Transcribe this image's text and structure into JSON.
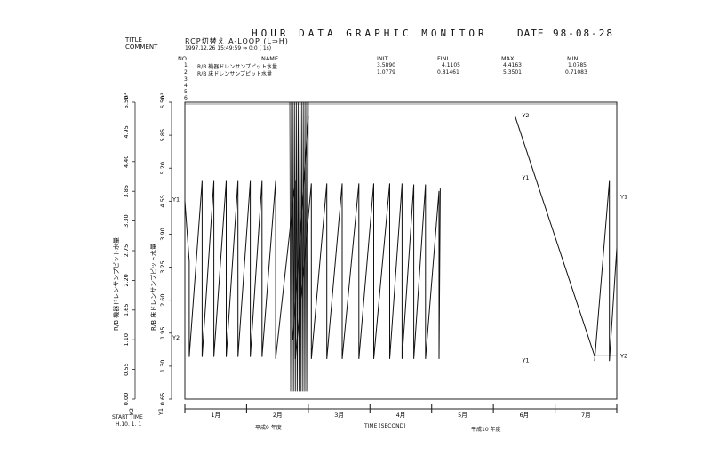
{
  "header": {
    "title": "HOUR DATA GRAPHIC MONITOR",
    "date_label": "DATE",
    "date_value": "98-08-28"
  },
  "meta": {
    "title_label": "TITLE",
    "comment_label": "COMMENT",
    "title_value": "RCP切替え A-LOOP (L⇒H)",
    "comment_value": "1997.12.26 15:49:59 ⇒ 0:0 ( 1s)"
  },
  "table": {
    "headers": [
      "NO.",
      "NAME",
      "INIT",
      "FINL.",
      "MAX.",
      "MIN."
    ],
    "rows": [
      {
        "no": "1",
        "name": "R/B 機器ドレンサンプピット水量",
        "init": "3.5890",
        "finl": "4.1105",
        "max": "4.4163",
        "min": "1.0785"
      },
      {
        "no": "2",
        "name": "R/B 床ドレンサンプピット水量",
        "init": "1.0779",
        "finl": "0.81461",
        "max": "5.3501",
        "min": "0.71083"
      },
      {
        "no": "3",
        "name": "",
        "init": "",
        "finl": "",
        "max": "",
        "min": ""
      },
      {
        "no": "4",
        "name": "",
        "init": "",
        "finl": "",
        "max": "",
        "min": ""
      },
      {
        "no": "5",
        "name": "",
        "init": "",
        "finl": "",
        "max": "",
        "min": ""
      },
      {
        "no": "6",
        "name": "",
        "init": "",
        "finl": "",
        "max": "",
        "min": ""
      }
    ]
  },
  "footer": {
    "start_time_label": "START TIME",
    "start_time_value": "H.10. 1. 1",
    "era_left": "平成9 年度",
    "xlabel": "TIME (SECOND)",
    "era_right": "平成10 年度"
  },
  "chart_data": {
    "type": "line",
    "xlabel": "TIME (SECOND)",
    "categories": [
      "1月",
      "2月",
      "3月",
      "4月",
      "5月",
      "6月",
      "7月"
    ],
    "xlim": [
      0,
      7
    ],
    "axes": [
      {
        "id": "Y2",
        "unit": "m³",
        "ylabel": "R/B 機器ドレンサンプピット水量",
        "ylim": [
          0,
          5.5
        ],
        "ticks": [
          "0.00",
          "0.55",
          "1.10",
          "1.65",
          "2.20",
          "2.75",
          "3.30",
          "3.85",
          "4.40",
          "4.95",
          "5.50"
        ]
      },
      {
        "id": "Y1",
        "unit": "m³",
        "ylabel": "R/B 床ドレンサンプピット水量",
        "ylim": [
          0.65,
          6.5
        ],
        "ticks": [
          "0.65",
          "1.30",
          "1.95",
          "2.60",
          "3.25",
          "3.90",
          "4.55",
          "5.20",
          "5.85",
          "6.50"
        ]
      }
    ],
    "grid": false,
    "series": [
      {
        "name": "Y1",
        "points": [
          [
            0.0,
            4.55
          ],
          [
            0.07,
            3.36
          ],
          [
            0.07,
            1.48
          ],
          [
            0.28,
            4.95
          ],
          [
            0.28,
            1.48
          ],
          [
            0.47,
            4.95
          ],
          [
            0.47,
            1.48
          ],
          [
            0.67,
            4.95
          ],
          [
            0.67,
            1.48
          ],
          [
            0.86,
            4.95
          ],
          [
            0.86,
            1.48
          ],
          [
            1.06,
            4.95
          ],
          [
            1.06,
            1.48
          ],
          [
            1.25,
            4.95
          ],
          [
            1.25,
            1.48
          ],
          [
            1.47,
            4.95
          ],
          [
            1.47,
            1.44
          ],
          [
            1.79,
            4.95
          ],
          [
            1.79,
            1.44
          ],
          [
            2.05,
            4.9
          ],
          [
            2.05,
            1.44
          ],
          [
            2.3,
            4.9
          ],
          [
            2.3,
            1.44
          ],
          [
            2.55,
            4.9
          ],
          [
            2.55,
            1.44
          ],
          [
            2.82,
            4.9
          ],
          [
            2.82,
            1.44
          ],
          [
            3.06,
            4.9
          ],
          [
            3.06,
            1.44
          ],
          [
            3.32,
            4.9
          ],
          [
            3.32,
            1.44
          ],
          [
            3.52,
            4.9
          ],
          [
            3.52,
            1.44
          ],
          [
            3.71,
            4.88
          ],
          [
            3.71,
            1.44
          ],
          [
            3.9,
            4.88
          ],
          [
            3.9,
            1.44
          ],
          [
            4.12,
            4.75
          ],
          [
            4.12,
            1.44
          ],
          [
            4.14,
            4.8
          ],
          [
            6.64,
            1.4
          ],
          [
            6.88,
            4.95
          ],
          [
            6.88,
            1.4
          ],
          [
            7.0,
            3.62
          ]
        ]
      },
      {
        "name": "Y2",
        "points": [
          [
            0.0,
            1.1
          ],
          [
            1.75,
            1.1
          ],
          [
            2.0,
            5.25
          ],
          [
            5.35,
            5.25
          ],
          [
            6.64,
            0.8
          ],
          [
            7.0,
            0.8
          ]
        ]
      }
    ]
  }
}
